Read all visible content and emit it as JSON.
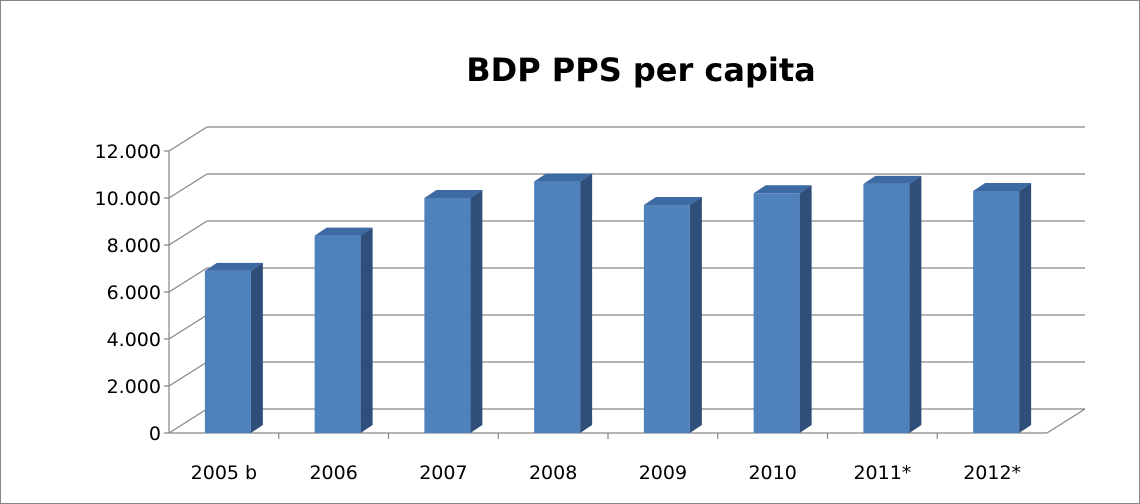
{
  "chart_data": {
    "type": "bar",
    "title": "BDP PPS per capita",
    "xlabel": "",
    "ylabel": "",
    "categories": [
      "2005 b",
      "2006",
      "2007",
      "2008",
      "2009",
      "2010",
      "2011*",
      "2012*"
    ],
    "values": [
      6900,
      8400,
      10000,
      10700,
      9700,
      10200,
      10600,
      10300
    ],
    "ylim": [
      0,
      12000
    ],
    "yticks": [
      "0",
      "2.000",
      "4.000",
      "6.000",
      "8.000",
      "10.000",
      "12.000"
    ],
    "grid": true,
    "legend": "none",
    "style": "3d-column",
    "colors": {
      "bar_front": "#4f81bd",
      "bar_side": "#2f4f7a",
      "bar_top": "#3e6aa3",
      "gridline": "#868686",
      "axis": "#868686"
    }
  }
}
